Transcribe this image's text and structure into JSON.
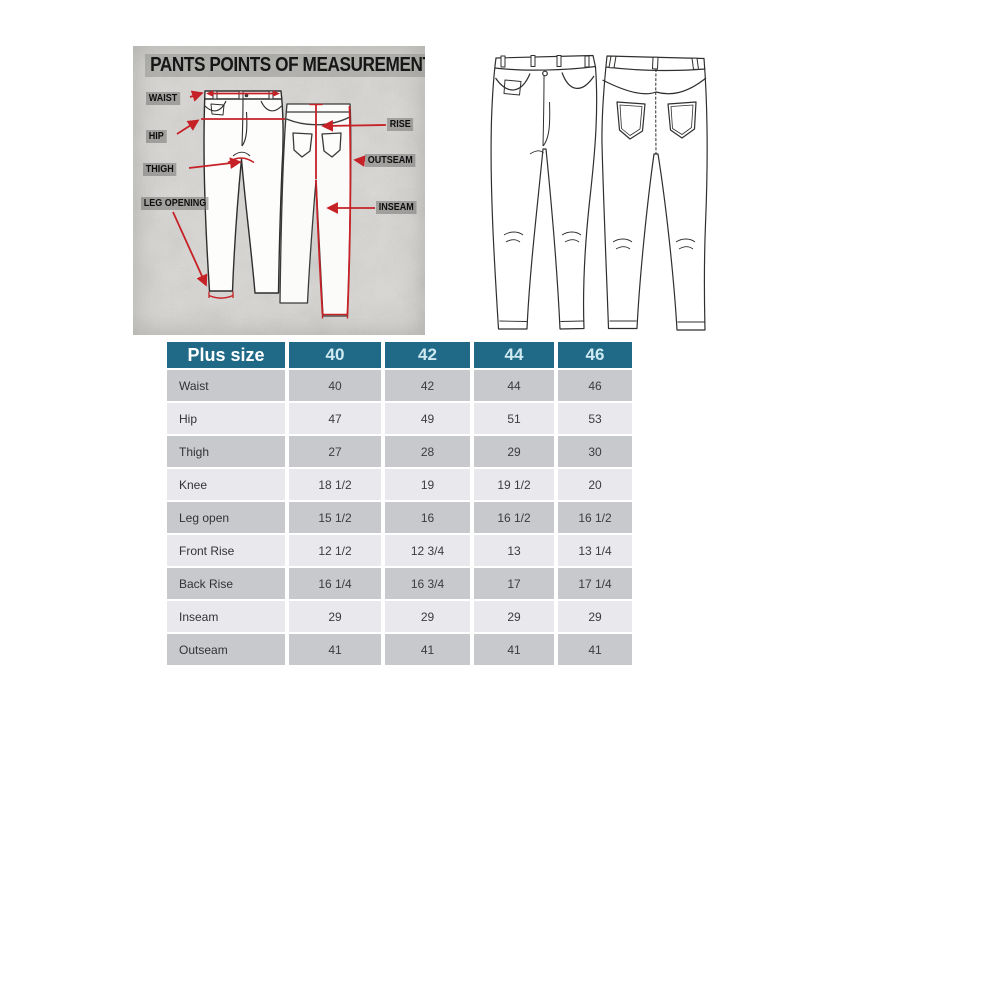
{
  "diagram": {
    "title": "PANTS POINTS OF MEASUREMENT",
    "labels": {
      "waist": "WAIST",
      "hip": "HIP",
      "thigh": "THIGH",
      "leg_opening": "LEG OPENING",
      "rise": "RISE",
      "outseam": "OUTSEAM",
      "inseam": "INSEAM"
    },
    "accent_color": "#c62127",
    "panel_bg": "#d8d7d4"
  },
  "size_table": {
    "header_label": "Plus size",
    "sizes": [
      "40",
      "42",
      "44",
      "46"
    ],
    "rows": [
      {
        "label": "Waist",
        "values": [
          "40",
          "42",
          "44",
          "46"
        ]
      },
      {
        "label": "Hip",
        "values": [
          "47",
          "49",
          "51",
          "53"
        ]
      },
      {
        "label": "Thigh",
        "values": [
          "27",
          "28",
          "29",
          "30"
        ]
      },
      {
        "label": "Knee",
        "values": [
          "18 1/2",
          "19",
          "19 1/2",
          "20"
        ]
      },
      {
        "label": "Leg open",
        "values": [
          "15 1/2",
          "16",
          "16 1/2",
          "16 1/2"
        ]
      },
      {
        "label": "Front Rise",
        "values": [
          "12 1/2",
          "12 3/4",
          "13",
          "13 1/4"
        ]
      },
      {
        "label": "Back Rise",
        "values": [
          "16 1/4",
          "16 3/4",
          "17",
          "17 1/4"
        ]
      },
      {
        "label": "Inseam",
        "values": [
          "29",
          "29",
          "29",
          "29"
        ]
      },
      {
        "label": "Outseam",
        "values": [
          "41",
          "41",
          "41",
          "41"
        ]
      }
    ],
    "header_bg": "#206a87",
    "row_dark": "#c8c9cc",
    "row_light": "#e9e9ed"
  }
}
